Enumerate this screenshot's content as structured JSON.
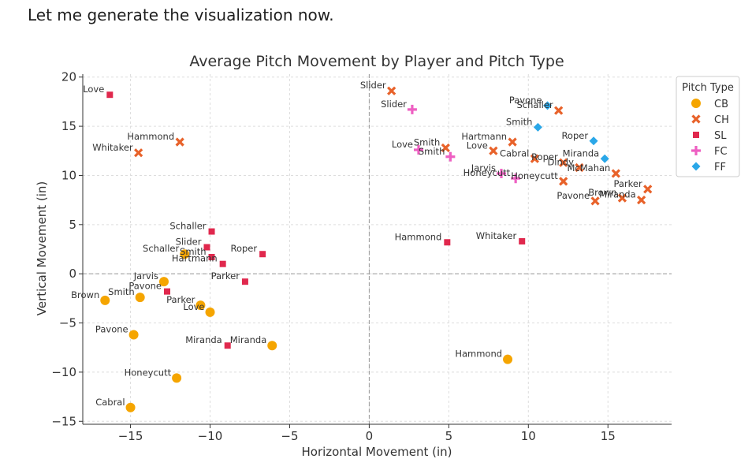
{
  "message": "Let me generate the visualization now.",
  "chart_data": {
    "type": "scatter",
    "title": "Average Pitch Movement by Player and Pitch Type",
    "xlabel": "Horizontal Movement (in)",
    "ylabel": "Vertical Movement (in)",
    "xlim": [
      -18,
      19
    ],
    "ylim": [
      -15.3,
      20.3
    ],
    "xticks": [
      -15,
      -10,
      -5,
      0,
      5,
      10,
      15
    ],
    "yticks": [
      -15,
      -10,
      -5,
      0,
      5,
      10,
      15,
      20
    ],
    "grid": true,
    "reference_lines": {
      "x": 0,
      "y": 0
    },
    "legend": {
      "title": "Pitch Type",
      "placement": "right"
    },
    "series": [
      {
        "name": "CB",
        "color": "#f5a500",
        "marker": "circle",
        "points": [
          {
            "x": -16.6,
            "y": -2.7,
            "label": "Brown"
          },
          {
            "x": -14.4,
            "y": -2.4,
            "label": "Smith"
          },
          {
            "x": -12.9,
            "y": -0.8,
            "label": "Jarvis"
          },
          {
            "x": -11.6,
            "y": 2.0,
            "label": "Schaller"
          },
          {
            "x": -10.6,
            "y": -3.2,
            "label": "Parker"
          },
          {
            "x": -10.0,
            "y": -3.9,
            "label": "Love"
          },
          {
            "x": -14.8,
            "y": -6.2,
            "label": "Pavone"
          },
          {
            "x": -6.1,
            "y": -7.3,
            "label": "Miranda"
          },
          {
            "x": -12.1,
            "y": -10.6,
            "label": "Honeycutt"
          },
          {
            "x": -15.0,
            "y": -13.6,
            "label": "Cabral"
          },
          {
            "x": 8.7,
            "y": -8.7,
            "label": "Hammond"
          }
        ]
      },
      {
        "name": "CH",
        "color": "#e8622a",
        "marker": "x",
        "points": [
          {
            "x": -11.9,
            "y": 13.4,
            "label": "Hammond"
          },
          {
            "x": -14.5,
            "y": 12.3,
            "label": "Whitaker"
          },
          {
            "x": 1.4,
            "y": 18.6,
            "label": "Slider"
          },
          {
            "x": 11.9,
            "y": 16.6,
            "label": "Schaller"
          },
          {
            "x": 4.8,
            "y": 12.8,
            "label": "Smith"
          },
          {
            "x": 9.0,
            "y": 13.4,
            "label": "Hartmann"
          },
          {
            "x": 7.8,
            "y": 12.5,
            "label": "Love"
          },
          {
            "x": 10.4,
            "y": 11.7,
            "label": "Cabral"
          },
          {
            "x": 12.2,
            "y": 11.3,
            "label": "Roper"
          },
          {
            "x": 13.2,
            "y": 10.8,
            "label": "Dindy"
          },
          {
            "x": 15.5,
            "y": 10.2,
            "label": "McMahan"
          },
          {
            "x": 12.2,
            "y": 9.4,
            "label": "Honeycutt"
          },
          {
            "x": 17.5,
            "y": 8.6,
            "label": "Parker"
          },
          {
            "x": 14.2,
            "y": 7.4,
            "label": "Pavone"
          },
          {
            "x": 15.9,
            "y": 7.7,
            "label": "Brown"
          },
          {
            "x": 17.1,
            "y": 7.5,
            "label": "Miranda"
          }
        ]
      },
      {
        "name": "SL",
        "color": "#e0284d",
        "marker": "square",
        "points": [
          {
            "x": -16.3,
            "y": 18.2,
            "label": "Love"
          },
          {
            "x": -9.9,
            "y": 4.3,
            "label": "Schaller"
          },
          {
            "x": -10.2,
            "y": 2.7,
            "label": "Slider"
          },
          {
            "x": -9.9,
            "y": 1.7,
            "label": "Smith"
          },
          {
            "x": -9.2,
            "y": 1.0,
            "label": "Hartmann"
          },
          {
            "x": -6.7,
            "y": 2.0,
            "label": "Roper"
          },
          {
            "x": -7.8,
            "y": -0.8,
            "label": "Parker"
          },
          {
            "x": -12.7,
            "y": -1.8,
            "label": "Pavone"
          },
          {
            "x": -8.9,
            "y": -7.3,
            "label": "Miranda"
          },
          {
            "x": 4.9,
            "y": 3.2,
            "label": "Hammond"
          },
          {
            "x": 9.6,
            "y": 3.3,
            "label": "Whitaker"
          }
        ]
      },
      {
        "name": "FC",
        "color": "#ee5fc2",
        "marker": "plus",
        "points": [
          {
            "x": 2.7,
            "y": 16.7,
            "label": "Slider"
          },
          {
            "x": 3.1,
            "y": 12.6,
            "label": "Love"
          },
          {
            "x": 5.1,
            "y": 11.9,
            "label": "Smith"
          },
          {
            "x": 8.3,
            "y": 10.2,
            "label": "Jarvis"
          },
          {
            "x": 9.2,
            "y": 9.7,
            "label": "Honeycutt"
          }
        ]
      },
      {
        "name": "FF",
        "color": "#2aa7e8",
        "marker": "diamond",
        "points": [
          {
            "x": 11.2,
            "y": 17.1,
            "label": "Pavone"
          },
          {
            "x": 10.6,
            "y": 14.9,
            "label": "Smith"
          },
          {
            "x": 14.1,
            "y": 13.5,
            "label": "Roper"
          },
          {
            "x": 14.8,
            "y": 11.7,
            "label": "Miranda"
          }
        ]
      }
    ]
  }
}
